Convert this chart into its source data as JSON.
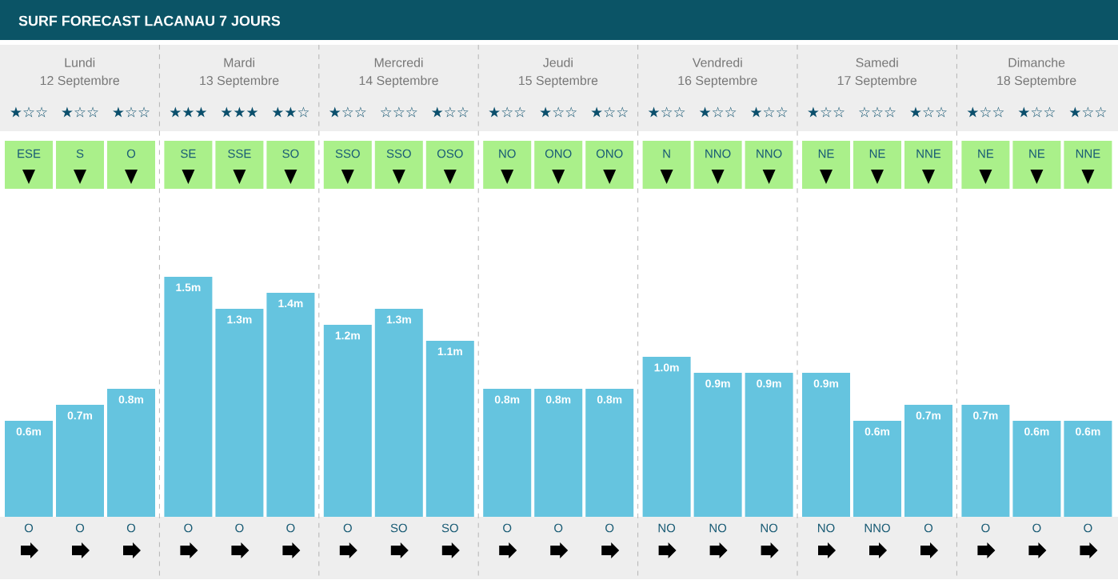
{
  "chart_data": {
    "type": "bar",
    "title": "SURF FORECAST LACANAU 7 JOURS",
    "categories": [
      "O",
      "O",
      "O",
      "O",
      "O",
      "O",
      "O",
      "SO",
      "SO",
      "O",
      "O",
      "O",
      "NO",
      "NO",
      "NO",
      "NO",
      "NNO",
      "O",
      "O",
      "O",
      "O"
    ],
    "values": [
      0.6,
      0.7,
      0.8,
      1.5,
      1.3,
      1.4,
      1.2,
      1.3,
      1.1,
      0.8,
      0.8,
      0.8,
      1.0,
      0.9,
      0.9,
      0.9,
      0.6,
      0.7,
      0.7,
      0.6,
      0.6
    ],
    "value_labels": [
      "0.6m",
      "0.7m",
      "0.8m",
      "1.5m",
      "1.3m",
      "1.4m",
      "1.2m",
      "1.3m",
      "1.1m",
      "0.8m",
      "0.8m",
      "0.8m",
      "1.0m",
      "0.9m",
      "0.9m",
      "0.9m",
      "0.6m",
      "0.7m",
      "0.7m",
      "0.6m",
      "0.6m"
    ],
    "color": "#65c4df",
    "annotations": [
      "Lundi",
      "12 Septembre",
      "Mardi",
      "13 Septembre",
      "Mercredi",
      "14 Septembre",
      "Jeudi",
      "15 Septembre",
      "Vendredi",
      "16 Septembre",
      "Samedi",
      "17 Septembre",
      "Dimanche",
      "18 Septembre",
      "★☆☆",
      "★☆☆",
      "★☆☆",
      "★★★",
      "★★★",
      "★★☆",
      "★☆☆",
      "☆☆☆",
      "★☆☆",
      "★☆☆",
      "★☆☆",
      "★☆☆",
      "★☆☆",
      "★☆☆",
      "★☆☆",
      "★☆☆",
      "☆☆☆",
      "★☆☆",
      "★☆☆",
      "★☆☆",
      "★☆☆",
      "ESE",
      "S",
      "O",
      "SE",
      "SSE",
      "SO",
      "SSO",
      "SSO",
      "OSO",
      "NO",
      "ONO",
      "ONO",
      "N",
      "NNO",
      "NNO",
      "NE",
      "NE",
      "NNE",
      "NE",
      "NE",
      "NNE"
    ]
  }
}
